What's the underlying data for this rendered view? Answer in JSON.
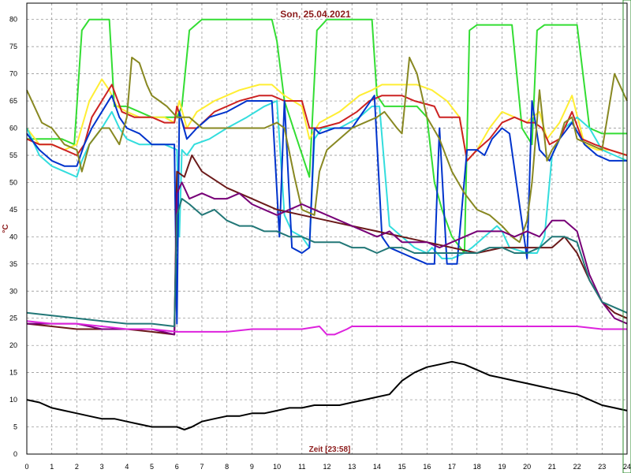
{
  "chart_data": {
    "type": "line",
    "title": "Son, 25.04.2021",
    "xlabel": "Zeit [23:58]",
    "ylabel": "°C",
    "xlim": [
      0,
      24
    ],
    "ylim": [
      0,
      83
    ],
    "xticks": [
      0,
      1,
      2,
      3,
      4,
      5,
      6,
      7,
      8,
      9,
      10,
      11,
      12,
      13,
      14,
      15,
      16,
      17,
      18,
      19,
      20,
      21,
      22,
      23,
      24
    ],
    "yticks": [
      0,
      5,
      10,
      15,
      20,
      25,
      30,
      35,
      40,
      45,
      50,
      55,
      60,
      65,
      70,
      75,
      80
    ],
    "grid": true,
    "legend": "none",
    "series": [
      {
        "color": "#33dd33",
        "x": [
          0,
          0.3,
          0.5,
          1,
          1.4,
          1.9,
          2.2,
          2.5,
          3,
          3.3,
          3.5,
          3.8,
          4,
          4.5,
          5,
          5.5,
          6,
          6.2,
          6.5,
          7,
          8,
          9,
          9.5,
          9.8,
          10,
          10.3,
          10.8,
          11.3,
          11.6,
          12,
          12.5,
          13,
          13.5,
          13.8,
          14,
          14.3,
          15,
          15.6,
          16,
          16.3,
          16.6,
          17,
          17.5,
          17.7,
          18,
          19,
          19.4,
          19.8,
          20.2,
          20.4,
          20.7,
          21,
          21.5,
          22,
          22.5,
          23,
          23.5,
          24
        ],
        "y": [
          58,
          58,
          58,
          58,
          58,
          57,
          78,
          80,
          80,
          80,
          64,
          64,
          64,
          63,
          62,
          62,
          62,
          64,
          78,
          80,
          80,
          80,
          80,
          80,
          76,
          65,
          58,
          51,
          78,
          80,
          80,
          80,
          80,
          80,
          66,
          64,
          64,
          64,
          62,
          50,
          45,
          40,
          37,
          78,
          79,
          79,
          79,
          60,
          57,
          78,
          79,
          79,
          79,
          79,
          60,
          59,
          59,
          59
        ]
      },
      {
        "color": "#ffee33",
        "x": [
          0,
          0.5,
          1,
          1.5,
          2,
          2.5,
          3,
          3.3,
          3.6,
          4,
          4.5,
          5,
          5.5,
          5.9,
          6.1,
          6.4,
          6.8,
          7.5,
          8.5,
          9.3,
          9.8,
          10.3,
          11,
          11.3,
          11.7,
          12.5,
          13.3,
          13.8,
          14.2,
          14.8,
          15.6,
          16.2,
          16.8,
          17.3,
          17.6,
          18,
          18.5,
          19,
          19.5,
          20,
          20.2,
          20.5,
          20.8,
          21.3,
          21.8,
          22.3,
          22.8,
          23.3,
          24
        ],
        "y": [
          60,
          57,
          57,
          56,
          57,
          65,
          69,
          67,
          64,
          63,
          62,
          62,
          62,
          61,
          65,
          60,
          63,
          65,
          67,
          68,
          68,
          66,
          64,
          58,
          61,
          63,
          66,
          67,
          68,
          68,
          68,
          67,
          65,
          62,
          54,
          56,
          60,
          63,
          62,
          61,
          62,
          63,
          58,
          61,
          66,
          57,
          56,
          56,
          55
        ]
      },
      {
        "color": "#33dddd",
        "x": [
          0,
          0.5,
          1,
          1.5,
          2,
          2.2,
          2.5,
          3,
          3.4,
          3.7,
          4,
          4.5,
          5,
          5.5,
          6,
          6.1,
          6.2,
          6.4,
          6.7,
          7.3,
          8,
          8.8,
          9.5,
          10,
          10.3,
          10.6,
          11,
          11.3,
          11.5,
          11.8,
          12.5,
          13.3,
          13.8,
          14.1,
          14.5,
          15,
          15.5,
          16,
          16.2,
          16.6,
          17,
          17.5,
          17.8,
          18.3,
          18.8,
          19,
          19.3,
          20,
          20.4,
          20.7,
          21,
          21.5,
          22,
          22.5,
          23,
          23.5,
          24
        ],
        "y": [
          60,
          55,
          53,
          52,
          51,
          54,
          57,
          60,
          63,
          60,
          58,
          57,
          57,
          57,
          56,
          40,
          56,
          55,
          57,
          58,
          60,
          62,
          64,
          65,
          44,
          41,
          40,
          38,
          58,
          60,
          60,
          62,
          64,
          64,
          42,
          40,
          38,
          37,
          38,
          36,
          36,
          37,
          38,
          40,
          42,
          41,
          38,
          37,
          37,
          40,
          55,
          60,
          62,
          60,
          56,
          55,
          54
        ]
      },
      {
        "color": "#cc2222",
        "x": [
          0,
          0.5,
          1,
          1.5,
          2,
          2.3,
          2.6,
          3,
          3.4,
          3.8,
          4.3,
          5,
          5.5,
          5.9,
          6,
          6.3,
          6.8,
          7.5,
          8.5,
          9.3,
          9.8,
          10.3,
          11,
          11.3,
          11.7,
          12.5,
          13.2,
          13.7,
          14.2,
          15,
          15.5,
          16.3,
          16.5,
          16.8,
          17.3,
          17.6,
          18,
          18.5,
          19,
          19.5,
          20,
          20.3,
          20.6,
          20.9,
          21.3,
          21.8,
          22.2,
          22.7,
          23.3,
          24
        ],
        "y": [
          58,
          57,
          57,
          56,
          55,
          57,
          62,
          65,
          68,
          63,
          62,
          62,
          61,
          61,
          64,
          60,
          60,
          63,
          65,
          66,
          66,
          65,
          65,
          60,
          60,
          61,
          63,
          65,
          66,
          66,
          65,
          64,
          62,
          62,
          62,
          54,
          56,
          58,
          61,
          62,
          61,
          61,
          60,
          57,
          58,
          63,
          58,
          57,
          56,
          55
        ]
      },
      {
        "color": "#0033cc",
        "x": [
          0,
          0.5,
          1,
          1.5,
          2,
          2.3,
          2.6,
          3,
          3.4,
          3.7,
          4,
          4.5,
          5,
          5.5,
          5.9,
          6,
          6.1,
          6.4,
          6.8,
          7.3,
          8,
          8.8,
          9.3,
          9.8,
          10.1,
          10.3,
          10.6,
          11,
          11.3,
          11.5,
          11.7,
          12.3,
          13,
          13.6,
          13.9,
          14.2,
          14.5,
          15,
          15.5,
          16,
          16.3,
          16.5,
          16.8,
          17.2,
          17.6,
          18,
          18.3,
          18.6,
          19,
          19.3,
          20,
          20.2,
          20.5,
          20.9,
          21.3,
          21.8,
          22.3,
          22.8,
          23.3,
          24
        ],
        "y": [
          59,
          56,
          54,
          53,
          53,
          57,
          60,
          63,
          66,
          62,
          60,
          59,
          57,
          57,
          57,
          24,
          63,
          58,
          60,
          62,
          63,
          65,
          65,
          65,
          40,
          65,
          38,
          37,
          38,
          60,
          59,
          60,
          60,
          64,
          66,
          40,
          38,
          37,
          36,
          35,
          35,
          60,
          35,
          35,
          56,
          56,
          55,
          58,
          60,
          59,
          36,
          65,
          56,
          54,
          58,
          61,
          57,
          55,
          54,
          54
        ]
      },
      {
        "color": "#888822",
        "x": [
          0,
          0.3,
          0.6,
          1,
          1.5,
          2,
          2.2,
          2.5,
          3,
          3.3,
          3.7,
          4,
          4.2,
          4.5,
          4.8,
          5,
          5.3,
          5.6,
          6,
          6.5,
          7,
          8,
          9,
          9.5,
          10,
          10.3,
          10.7,
          11,
          11.5,
          11.7,
          12,
          12.5,
          13,
          13.5,
          14,
          14.3,
          14.8,
          15,
          15.3,
          15.6,
          16,
          16.5,
          17,
          17.5,
          18,
          18.5,
          19,
          19.4,
          19.7,
          20,
          20.2,
          20.5,
          20.8,
          21,
          21.3,
          21.5,
          21.8,
          22,
          22.5,
          23,
          23.5,
          24
        ],
        "y": [
          67,
          64,
          61,
          60,
          57,
          56,
          52,
          57,
          60,
          60,
          57,
          62,
          73,
          72,
          68,
          66,
          65,
          64,
          62,
          62,
          60,
          60,
          60,
          60,
          61,
          60,
          51,
          45,
          44,
          52,
          56,
          58,
          60,
          61,
          62,
          63,
          60,
          59,
          73,
          70,
          62,
          58,
          52,
          48,
          45,
          44,
          42,
          40,
          39,
          43,
          50,
          67,
          54,
          56,
          58,
          61,
          62,
          58,
          57,
          56,
          70,
          65
        ]
      },
      {
        "color": "#6b1a1a",
        "x": [
          0,
          1,
          2,
          3,
          4,
          5,
          5.9,
          6,
          6.3,
          6.6,
          7,
          8,
          9,
          10,
          11,
          12,
          13,
          14,
          15,
          16,
          17,
          18,
          19,
          20,
          21,
          21.5,
          22,
          22.5,
          23,
          23.5,
          24
        ],
        "y": [
          24,
          23.5,
          23,
          23,
          23,
          22.5,
          22,
          52,
          51,
          55,
          52,
          49,
          47,
          45,
          44,
          43,
          42,
          41,
          40,
          39,
          38,
          37,
          38,
          38,
          38,
          40,
          37,
          32,
          28,
          26,
          25
        ]
      },
      {
        "color": "#770077",
        "x": [
          0,
          1,
          2,
          3,
          4,
          5,
          5.9,
          6,
          6.2,
          6.5,
          7,
          7.5,
          8,
          8.5,
          9,
          9.5,
          10,
          10.5,
          11,
          11.5,
          12,
          12.5,
          13,
          13.5,
          14,
          14.5,
          15,
          15.5,
          16,
          16.5,
          17,
          17.5,
          18,
          18.5,
          19,
          19.5,
          20,
          20.5,
          21,
          21.5,
          22,
          22.5,
          23,
          23.5,
          24
        ],
        "y": [
          24,
          24,
          24,
          23,
          23,
          23,
          22,
          48,
          50,
          47,
          48,
          47,
          47,
          48,
          46,
          45,
          44,
          45,
          46,
          45,
          44,
          43,
          42,
          41,
          40,
          41,
          39,
          39,
          39,
          38,
          39,
          40,
          41,
          41,
          41,
          40,
          41,
          40,
          43,
          43,
          41,
          33,
          28,
          25,
          24
        ]
      },
      {
        "color": "#227777",
        "x": [
          0,
          1,
          2,
          3,
          4,
          5,
          5.9,
          6,
          6.2,
          6.5,
          7,
          7.5,
          8,
          8.5,
          9,
          9.5,
          10,
          10.5,
          11,
          11.5,
          12,
          12.5,
          13,
          13.5,
          14,
          14.5,
          15,
          15.5,
          16,
          16.5,
          17,
          17.5,
          18,
          18.5,
          19,
          19.5,
          20,
          20.5,
          21,
          21.5,
          22,
          22.5,
          23,
          23.5,
          24
        ],
        "y": [
          26,
          25.5,
          25,
          24.5,
          24,
          24,
          23.5,
          44,
          47,
          46,
          44,
          45,
          43,
          42,
          42,
          41,
          41,
          40,
          40,
          39,
          39,
          39,
          38,
          38,
          37,
          38,
          38,
          37,
          37,
          37,
          37,
          37,
          37,
          38,
          38,
          37,
          37,
          38,
          40,
          40,
          39,
          32,
          28,
          27,
          26
        ]
      },
      {
        "color": "#dd22dd",
        "x": [
          0,
          1,
          2,
          3,
          4,
          5,
          6,
          7,
          8,
          9,
          10,
          11,
          11.7,
          12,
          12.3,
          12.8,
          13,
          14,
          15,
          16,
          17,
          18,
          19,
          20,
          21,
          22,
          23,
          24
        ],
        "y": [
          24.5,
          24,
          24,
          23.5,
          23,
          23,
          22.5,
          22.5,
          22.5,
          23,
          23,
          23,
          23.5,
          22,
          22,
          23,
          23.5,
          23.5,
          23.5,
          23.5,
          23.5,
          23.5,
          23.5,
          23.5,
          23.5,
          23.5,
          23,
          23
        ]
      },
      {
        "color": "#000000",
        "x": [
          0,
          0.5,
          1,
          1.5,
          2,
          2.5,
          3,
          3.5,
          4,
          4.5,
          5,
          5.5,
          6,
          6.3,
          6.6,
          7,
          7.5,
          8,
          8.5,
          9,
          9.5,
          10,
          10.5,
          11,
          11.5,
          12,
          12.5,
          13,
          13.5,
          14,
          14.5,
          15,
          15.5,
          16,
          16.5,
          17,
          17.5,
          18,
          18.5,
          19,
          19.5,
          20,
          20.5,
          21,
          21.5,
          22,
          22.5,
          23,
          23.5,
          24
        ],
        "y": [
          10,
          9.5,
          8.5,
          8,
          7.5,
          7,
          6.5,
          6.5,
          6,
          5.5,
          5,
          5,
          5,
          4.5,
          5,
          6,
          6.5,
          7,
          7,
          7.5,
          7.5,
          8,
          8.5,
          8.5,
          9,
          9,
          9,
          9.5,
          10,
          10.5,
          11,
          13.5,
          15,
          16,
          16.5,
          17,
          16.5,
          15.5,
          14.5,
          14,
          13.5,
          13,
          12.5,
          12,
          11.5,
          11,
          10,
          9,
          8.5,
          8
        ]
      }
    ]
  }
}
